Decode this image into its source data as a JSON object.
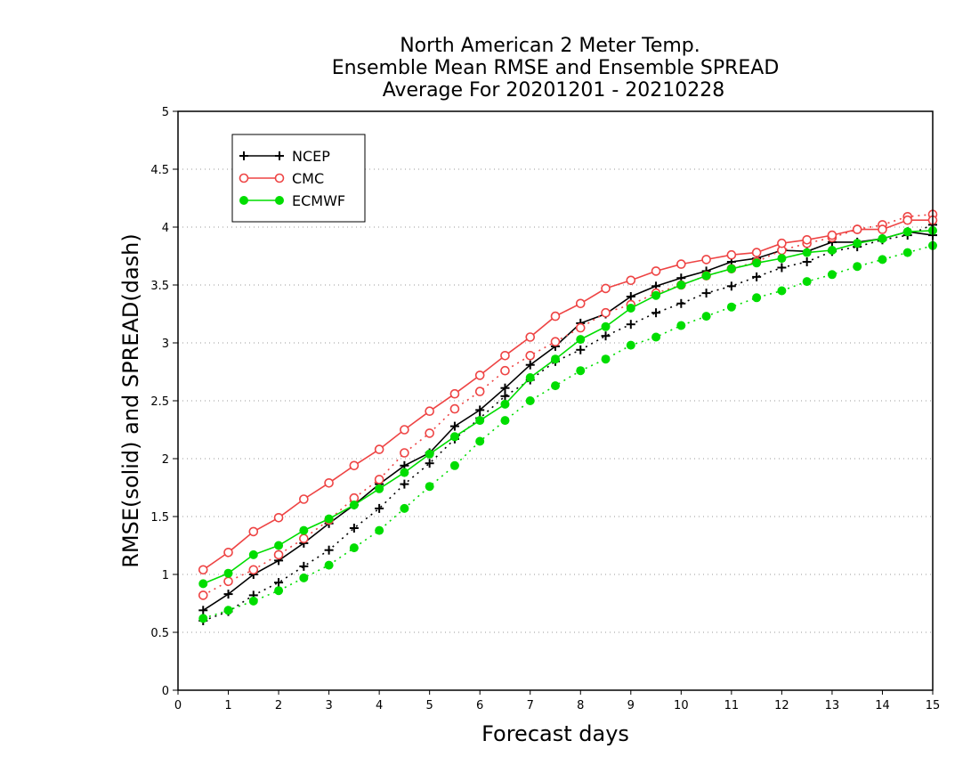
{
  "chart_data": {
    "type": "line",
    "title_lines": [
      "North American 2 Meter Temp.",
      "Ensemble Mean RMSE and Ensemble SPREAD",
      "Average For 20201201 - 20210228"
    ],
    "xlabel": "Forecast days",
    "ylabel": "RMSE(solid) and SPREAD(dash)",
    "xlim": [
      0,
      15
    ],
    "ylim": [
      0,
      5
    ],
    "xticks": [
      "0",
      "1",
      "2",
      "3",
      "4",
      "5",
      "6",
      "7",
      "8",
      "9",
      "10",
      "11",
      "12",
      "13",
      "14",
      "15"
    ],
    "yticks": [
      "0",
      "0.5",
      "1",
      "1.5",
      "2",
      "2.5",
      "3",
      "3.5",
      "4",
      "4.5",
      "5"
    ],
    "grid": "dotted horizontal",
    "legend_position": "top-left",
    "x": [
      0.5,
      1,
      1.5,
      2,
      2.5,
      3,
      3.5,
      4,
      4.5,
      5,
      5.5,
      6,
      6.5,
      7,
      7.5,
      8,
      8.5,
      9,
      9.5,
      10,
      10.5,
      11,
      11.5,
      12,
      12.5,
      13,
      13.5,
      14,
      14.5,
      15
    ],
    "series": [
      {
        "name": "NCEP",
        "color": "#000000",
        "marker": "plus",
        "rmse": [
          0.69,
          0.83,
          1.0,
          1.12,
          1.27,
          1.44,
          1.6,
          1.78,
          1.94,
          2.05,
          2.28,
          2.42,
          2.61,
          2.81,
          2.97,
          3.17,
          3.25,
          3.4,
          3.49,
          3.56,
          3.62,
          3.7,
          3.73,
          3.8,
          3.79,
          3.87,
          3.87,
          3.9,
          3.96,
          3.93
        ],
        "spread": [
          0.6,
          0.68,
          0.82,
          0.93,
          1.07,
          1.21,
          1.4,
          1.57,
          1.78,
          1.96,
          2.17,
          2.35,
          2.54,
          2.68,
          2.84,
          2.94,
          3.06,
          3.16,
          3.26,
          3.34,
          3.43,
          3.49,
          3.57,
          3.65,
          3.7,
          3.79,
          3.83,
          3.89,
          3.93,
          4.02
        ]
      },
      {
        "name": "CMC",
        "color": "#ee4444",
        "marker": "open-circle",
        "rmse": [
          1.04,
          1.19,
          1.37,
          1.49,
          1.65,
          1.79,
          1.94,
          2.08,
          2.25,
          2.41,
          2.56,
          2.72,
          2.89,
          3.05,
          3.23,
          3.34,
          3.47,
          3.54,
          3.62,
          3.68,
          3.72,
          3.76,
          3.78,
          3.86,
          3.89,
          3.93,
          3.98,
          3.98,
          4.06,
          4.06
        ],
        "spread": [
          0.82,
          0.94,
          1.04,
          1.17,
          1.31,
          1.47,
          1.66,
          1.82,
          2.05,
          2.22,
          2.43,
          2.58,
          2.76,
          2.89,
          3.01,
          3.13,
          3.26,
          3.33,
          3.43,
          3.5,
          3.58,
          3.64,
          3.7,
          3.8,
          3.86,
          3.91,
          3.98,
          4.02,
          4.09,
          4.11
        ]
      },
      {
        "name": "ECMWF",
        "color": "#00dd00",
        "marker": "filled-circle",
        "rmse": [
          0.92,
          1.01,
          1.17,
          1.25,
          1.38,
          1.48,
          1.6,
          1.74,
          1.88,
          2.04,
          2.19,
          2.33,
          2.47,
          2.7,
          2.86,
          3.03,
          3.14,
          3.3,
          3.41,
          3.5,
          3.58,
          3.64,
          3.69,
          3.73,
          3.78,
          3.8,
          3.86,
          3.9,
          3.96,
          3.97
        ],
        "spread": [
          0.62,
          0.69,
          0.77,
          0.86,
          0.97,
          1.08,
          1.23,
          1.38,
          1.57,
          1.76,
          1.94,
          2.15,
          2.33,
          2.5,
          2.63,
          2.76,
          2.86,
          2.98,
          3.05,
          3.15,
          3.23,
          3.31,
          3.39,
          3.45,
          3.53,
          3.59,
          3.66,
          3.72,
          3.78,
          3.84
        ]
      }
    ]
  }
}
